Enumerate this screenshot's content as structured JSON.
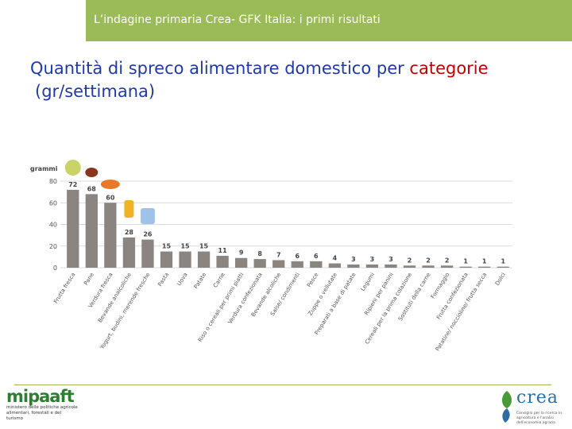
{
  "header": {
    "title": "L’indagine primaria Crea- GFK Italia: i primi risultati"
  },
  "slide": {
    "title_prefix": "Quantità di spreco alimentare domestico per ",
    "title_accent": "categorie",
    "title_line2": "(gr/settimana)"
  },
  "colors": {
    "header_bar": "#9bbb59",
    "title": "#1f3aa8",
    "accent": "#c00000",
    "bars": "#8a8580"
  },
  "chart_data": {
    "type": "bar",
    "ylabel": "grammi",
    "ylim": [
      0,
      80
    ],
    "yticks": [
      0,
      20,
      40,
      60,
      80
    ],
    "grid": true,
    "categories": [
      "Frutta fresca",
      "Pane",
      "Verdura fresca",
      "Bevande analcoliche",
      "Yogurt, budini, merende fresche",
      "Pasta",
      "Uova",
      "Patate",
      "Carne",
      "Riso o cereali per primi piatti",
      "Verdura confezionata",
      "Bevande alcoliche",
      "Salse/ condimenti",
      "Pesce",
      "Zuppe o vellutate",
      "Preparati a base di patate",
      "Legumi",
      "Ripieni per panini",
      "Cereali per la prima colazione",
      "Sostituti della carne",
      "Formaggio",
      "Frutta confezionata",
      "Patatine/ noccioline/ frutta secca",
      "Dolci"
    ],
    "values": [
      72,
      68,
      60,
      28,
      26,
      15,
      15,
      15,
      11,
      9,
      8,
      7,
      6,
      6,
      4,
      3,
      3,
      3,
      2,
      2,
      2,
      1,
      1,
      1
    ]
  },
  "footer": {
    "left_logo": {
      "wordmark": "mipaaft",
      "subtitle": "ministero delle politiche agricole alimentari, forestali e del turismo"
    },
    "right_logo": {
      "wordmark": "crea",
      "subtitle": "Consiglio per la ricerca in agricoltura e l'analisi dell'economia agraria"
    }
  }
}
